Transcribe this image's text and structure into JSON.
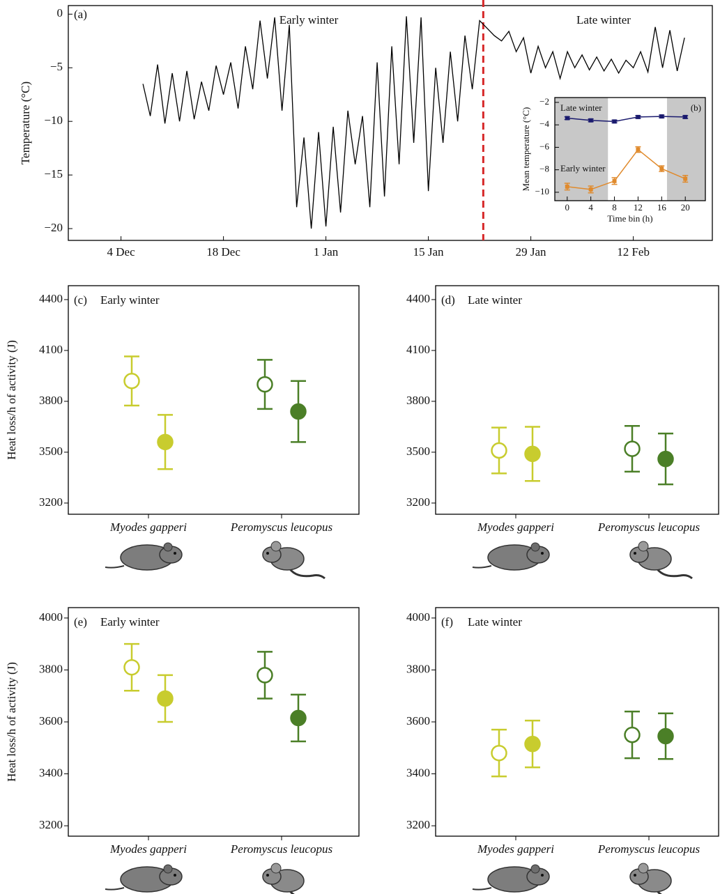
{
  "chart_data": [
    {
      "type": "line",
      "panel_label": "(a)",
      "ylabel": "Temperature (°C)",
      "annotations": [
        "Early winter",
        "Late winter"
      ],
      "xlim": [
        -7.2,
        80.8
      ],
      "ylim": [
        -21.1,
        0.8
      ],
      "xticks": [
        {
          "value": 0,
          "label": "4 Dec"
        },
        {
          "value": 14,
          "label": "18 Dec"
        },
        {
          "value": 28,
          "label": "1 Jan"
        },
        {
          "value": 42,
          "label": "15 Jan"
        },
        {
          "value": 56,
          "label": "29 Jan"
        },
        {
          "value": 70,
          "label": "12 Feb"
        }
      ],
      "yticks": [
        0,
        {
          "value": -5,
          "label": "−5"
        },
        {
          "value": -10,
          "label": "−10"
        },
        {
          "value": -15,
          "label": "−15"
        },
        {
          "value": -20,
          "label": "−20"
        }
      ],
      "vline": {
        "value": 49.5,
        "color": "#d62728"
      },
      "x": [
        3,
        4,
        5,
        6,
        7,
        8,
        9,
        10,
        11,
        12,
        13,
        14,
        15,
        16,
        17,
        18,
        19,
        20,
        21,
        22,
        23,
        24,
        25,
        26,
        27,
        28,
        29,
        30,
        31,
        32,
        33,
        34,
        35,
        36,
        37,
        38,
        39,
        40,
        41,
        42,
        43,
        44,
        45,
        46,
        47,
        48,
        49,
        50,
        51,
        52,
        53,
        54,
        55,
        56,
        57,
        58,
        59,
        60,
        61,
        62,
        63,
        64,
        65,
        66,
        67,
        68,
        69,
        70,
        71,
        72,
        73,
        74,
        75,
        76,
        77
      ],
      "series": [
        {
          "color": "#000000",
          "values": [
            -6.5,
            -9.5,
            -4.7,
            -10.2,
            -5.5,
            -10,
            -5.3,
            -9.8,
            -6.3,
            -9,
            -4.8,
            -7.5,
            -4.5,
            -8.8,
            -3,
            -7,
            -0.6,
            -6,
            -0.3,
            -9,
            -1,
            -18,
            -11.5,
            -20,
            -11,
            -19.8,
            -10.5,
            -18.5,
            -9,
            -14,
            -9.5,
            -18,
            -4.5,
            -17,
            -3,
            -14,
            -0.2,
            -12,
            -0.3,
            -16.5,
            -5,
            -12,
            -3.5,
            -10,
            -2,
            -7,
            -0.6,
            -1.3,
            -2,
            -2.5,
            -1.6,
            -3.5,
            -2.2,
            -5.5,
            -3,
            -5,
            -3.5,
            -6,
            -3.5,
            -5,
            -3.8,
            -5.2,
            -4,
            -5.3,
            -4.2,
            -5.5,
            -4.3,
            -5,
            -3.5,
            -5.4,
            -1.2,
            -5,
            -1.5,
            -5.3,
            -2.2
          ]
        }
      ]
    },
    {
      "type": "line",
      "panel_label": "(b)",
      "ylabel": "Mean temperature (°C)",
      "xlabel": "Time bin (h)",
      "xlim": [
        -2.1,
        23.4
      ],
      "ylim": [
        -10.75,
        -1.57
      ],
      "xticks": [
        0,
        4,
        8,
        12,
        16,
        20
      ],
      "yticks": [
        {
          "value": -2,
          "label": "−2"
        },
        {
          "value": -4,
          "label": "−4"
        },
        {
          "value": -6,
          "label": "−6"
        },
        {
          "value": -8,
          "label": "−8"
        },
        {
          "value": -10,
          "label": "−10"
        }
      ],
      "shading": {
        "ranges": [
          [
            -2.1,
            6.9
          ],
          [
            16.9,
            23.4
          ]
        ],
        "color": "#c8c8c8"
      },
      "x": [
        0,
        4,
        8,
        12,
        16,
        20
      ],
      "series": [
        {
          "name": "Late winter",
          "color": "#1a1a6e",
          "values": [
            -3.4,
            -3.6,
            -3.7,
            -3.3,
            -3.25,
            -3.3
          ],
          "errors": [
            0.12,
            0.12,
            0.12,
            0.12,
            0.12,
            0.12
          ]
        },
        {
          "name": "Early winter",
          "color": "#e08a2c",
          "values": [
            -9.5,
            -9.75,
            -9.0,
            -6.2,
            -7.9,
            -8.8
          ],
          "errors": [
            0.3,
            0.3,
            0.3,
            0.25,
            0.25,
            0.3
          ]
        }
      ]
    },
    {
      "type": "dot",
      "panel_label": "(c)",
      "title": "Early winter",
      "ylabel": "Heat loss/h of activity (J)",
      "categories": [
        "Myodes gapperi",
        "Peromyscus leucopus"
      ],
      "category_colors": [
        "#c8cc2e",
        "#4b7f27"
      ],
      "ylim": [
        3134,
        4482
      ],
      "yticks": [
        3200,
        3500,
        3800,
        4100,
        4400
      ],
      "series": [
        {
          "marker": "open",
          "values": [
            3920,
            3900
          ],
          "errors": [
            145,
            145
          ]
        },
        {
          "marker": "filled",
          "values": [
            3560,
            3740
          ],
          "errors": [
            160,
            180
          ]
        }
      ]
    },
    {
      "type": "dot",
      "panel_label": "(d)",
      "title": "Late winter",
      "categories": [
        "Myodes gapperi",
        "Peromyscus leucopus"
      ],
      "category_colors": [
        "#c8cc2e",
        "#4b7f27"
      ],
      "ylim": [
        3134,
        4482
      ],
      "yticks": [
        3200,
        3500,
        3800,
        4100,
        4400
      ],
      "series": [
        {
          "marker": "open",
          "values": [
            3510,
            3520
          ],
          "errors": [
            135,
            135
          ]
        },
        {
          "marker": "filled",
          "values": [
            3490,
            3460
          ],
          "errors": [
            160,
            150
          ]
        }
      ]
    },
    {
      "type": "dot",
      "panel_label": "(e)",
      "title": "Early winter",
      "ylabel": "Heat loss/h of activity (J)",
      "categories": [
        "Myodes gapperi",
        "Peromyscus leucopus"
      ],
      "category_colors": [
        "#c8cc2e",
        "#4b7f27"
      ],
      "ylim": [
        3160,
        4040
      ],
      "yticks": [
        3200,
        3400,
        3600,
        3800,
        4000
      ],
      "series": [
        {
          "marker": "open",
          "values": [
            3810,
            3780
          ],
          "errors": [
            90,
            90
          ]
        },
        {
          "marker": "filled",
          "values": [
            3690,
            3615
          ],
          "errors": [
            90,
            90
          ]
        }
      ]
    },
    {
      "type": "dot",
      "panel_label": "(f)",
      "title": "Late winter",
      "categories": [
        "Myodes gapperi",
        "Peromyscus leucopus"
      ],
      "category_colors": [
        "#c8cc2e",
        "#4b7f27"
      ],
      "ylim": [
        3160,
        4040
      ],
      "yticks": [
        3200,
        3400,
        3600,
        3800,
        4000
      ],
      "series": [
        {
          "marker": "open",
          "values": [
            3480,
            3550
          ],
          "errors": [
            90,
            90
          ]
        },
        {
          "marker": "filled",
          "values": [
            3515,
            3545
          ],
          "errors": [
            90,
            88
          ]
        }
      ]
    }
  ]
}
